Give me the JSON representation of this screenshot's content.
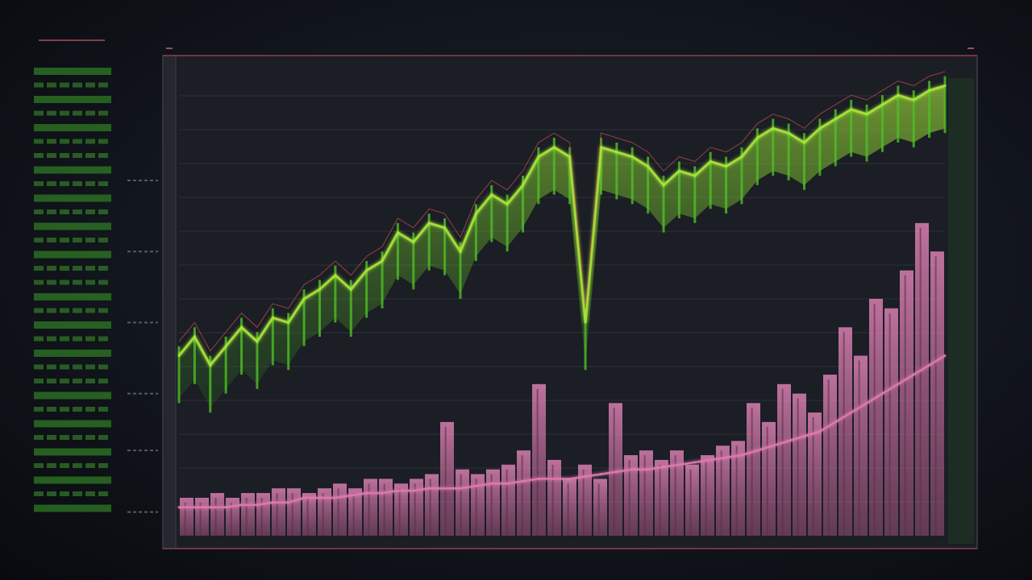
{
  "side_panel": {
    "title": "",
    "subtitle": "",
    "footer": "",
    "rows": [
      {
        "kind": "solid"
      },
      {
        "kind": "dash"
      },
      {
        "kind": "solid"
      },
      {
        "kind": "dash"
      },
      {
        "kind": "solid"
      },
      {
        "kind": "dash"
      },
      {
        "kind": "dash"
      },
      {
        "kind": "solid"
      },
      {
        "kind": "dash"
      },
      {
        "kind": "solid"
      },
      {
        "kind": "dash"
      },
      {
        "kind": "solid"
      },
      {
        "kind": "dash"
      },
      {
        "kind": "solid"
      },
      {
        "kind": "dash"
      },
      {
        "kind": "dash"
      },
      {
        "kind": "solid"
      },
      {
        "kind": "dash"
      },
      {
        "kind": "solid"
      },
      {
        "kind": "dash"
      },
      {
        "kind": "solid"
      },
      {
        "kind": "dash"
      },
      {
        "kind": "dash"
      },
      {
        "kind": "solid"
      },
      {
        "kind": "dash"
      },
      {
        "kind": "solid"
      },
      {
        "kind": "dash"
      },
      {
        "kind": "solid"
      },
      {
        "kind": "dash"
      },
      {
        "kind": "solid"
      },
      {
        "kind": "dash"
      },
      {
        "kind": "solid"
      }
    ]
  },
  "chart": {
    "corner_left": "",
    "corner_right": ""
  },
  "colors": {
    "background": "#12161d",
    "panel": "#1c1f26",
    "frame": "#3c3f46",
    "grid": "#2e3138",
    "price_green": "#5fd62a",
    "price_lime": "#a8e63a",
    "volume_pink": "#e07ab0",
    "accent_red": "#c8504e"
  },
  "chart_data": {
    "type": "line",
    "title": "",
    "xlabel": "",
    "ylabel": "",
    "ylim": [
      0,
      100
    ],
    "grid": true,
    "x": [
      0,
      1,
      2,
      3,
      4,
      5,
      6,
      7,
      8,
      9,
      10,
      11,
      12,
      13,
      14,
      15,
      16,
      17,
      18,
      19,
      20,
      21,
      22,
      23,
      24,
      25,
      26,
      27,
      28,
      29,
      30,
      31,
      32,
      33,
      34,
      35,
      36,
      37,
      38,
      39,
      40,
      41,
      42,
      43,
      44,
      45,
      46,
      47,
      48,
      49
    ],
    "series": [
      {
        "values": [
          38,
          42,
          36,
          40,
          44,
          41,
          46,
          45,
          50,
          52,
          55,
          52,
          56,
          58,
          64,
          62,
          66,
          65,
          60,
          68,
          72,
          70,
          74,
          80,
          82,
          80,
          45,
          82,
          81,
          80,
          78,
          74,
          77,
          76,
          79,
          78,
          80,
          84,
          86,
          85,
          83,
          86,
          88,
          90,
          89,
          91,
          93,
          92,
          94,
          95
        ]
      },
      {
        "values": [
          6,
          6,
          6,
          6,
          6.5,
          6.5,
          7,
          7,
          8,
          8,
          8,
          8.5,
          9,
          9,
          9.5,
          9.5,
          10,
          10,
          10,
          10.5,
          11,
          11,
          11.5,
          12,
          12,
          12,
          12.5,
          13,
          13.5,
          14,
          14,
          14.5,
          15,
          15.5,
          16,
          16.5,
          17,
          18,
          19,
          20,
          21,
          22,
          24,
          26,
          28,
          30,
          32,
          34,
          36,
          38
        ]
      }
    ],
    "bars": {
      "values": [
        8,
        8,
        9,
        8,
        9,
        9,
        10,
        10,
        9,
        10,
        11,
        10,
        12,
        12,
        11,
        12,
        13,
        24,
        14,
        13,
        14,
        15,
        18,
        32,
        16,
        12,
        15,
        12,
        28,
        17,
        18,
        16,
        18,
        15,
        17,
        19,
        20,
        28,
        24,
        32,
        30,
        26,
        34,
        44,
        38,
        50,
        48,
        56,
        66,
        60
      ]
    }
  }
}
